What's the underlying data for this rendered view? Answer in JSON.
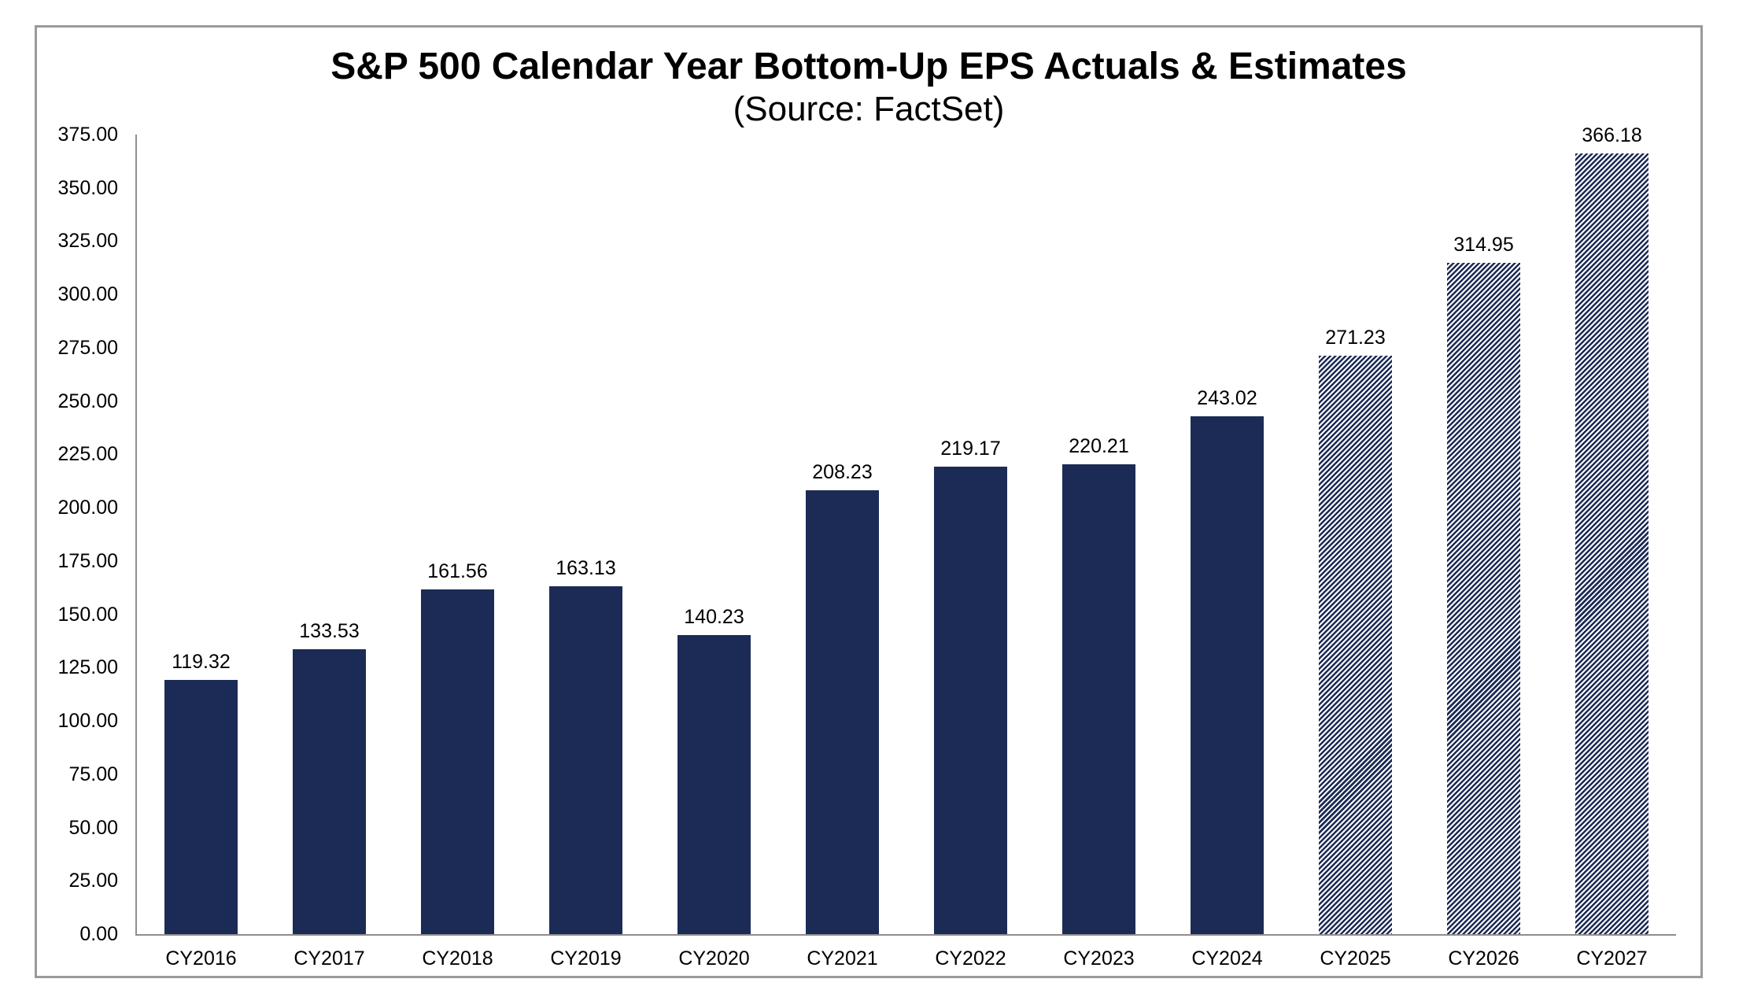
{
  "chart": {
    "title": "S&P 500 Calendar Year Bottom-Up EPS Actuals & Estimates",
    "subtitle": "(Source: FactSet)"
  },
  "chart_data": {
    "type": "bar",
    "title": "S&P 500 Calendar Year Bottom-Up EPS Actuals & Estimates",
    "subtitle": "(Source: FactSet)",
    "categories": [
      "CY2016",
      "CY2017",
      "CY2018",
      "CY2019",
      "CY2020",
      "CY2021",
      "CY2022",
      "CY2023",
      "CY2024",
      "CY2025",
      "CY2026",
      "CY2027"
    ],
    "series": [
      {
        "name": "Bottom-Up EPS",
        "values": [
          119.32,
          133.53,
          161.56,
          163.13,
          140.23,
          208.23,
          219.17,
          220.21,
          243.02,
          271.23,
          314.95,
          366.18
        ]
      }
    ],
    "value_labels": [
      "119.32",
      "133.53",
      "161.56",
      "163.13",
      "140.23",
      "208.23",
      "219.17",
      "220.21",
      "243.02",
      "271.23",
      "314.95",
      "366.18"
    ],
    "estimate_flags": [
      false,
      false,
      false,
      false,
      false,
      false,
      false,
      false,
      false,
      true,
      true,
      true
    ],
    "ylim": [
      0,
      375
    ],
    "ytick_interval": 25,
    "ytick_labels": [
      "0.00",
      "25.00",
      "50.00",
      "75.00",
      "100.00",
      "125.00",
      "150.00",
      "175.00",
      "200.00",
      "225.00",
      "250.00",
      "275.00",
      "300.00",
      "325.00",
      "350.00",
      "375.00"
    ],
    "xlabel": "",
    "ylabel": "",
    "grid": "off",
    "legend": "none",
    "colors": {
      "bar_solid": "#1c2b55",
      "hatch_stripe": "#1c2b55",
      "hatch_background": "#ffffff",
      "axis_line": "#8e8e8e",
      "frame_border": "#9a9a9a",
      "text": "#000000"
    },
    "estimate_style": "diagonal-hatch"
  }
}
